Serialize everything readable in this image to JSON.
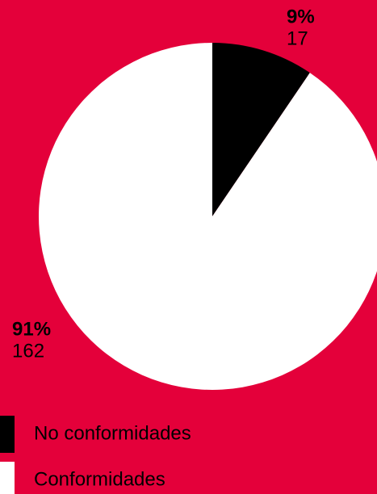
{
  "chart_data": {
    "type": "pie",
    "categories": [
      "No conformidades",
      "Conformidades"
    ],
    "values": [
      17,
      162
    ],
    "percent_labels": [
      "9%",
      "91%"
    ],
    "colors": [
      "#000000",
      "#ffffff"
    ],
    "background": "#e4003a"
  }
}
